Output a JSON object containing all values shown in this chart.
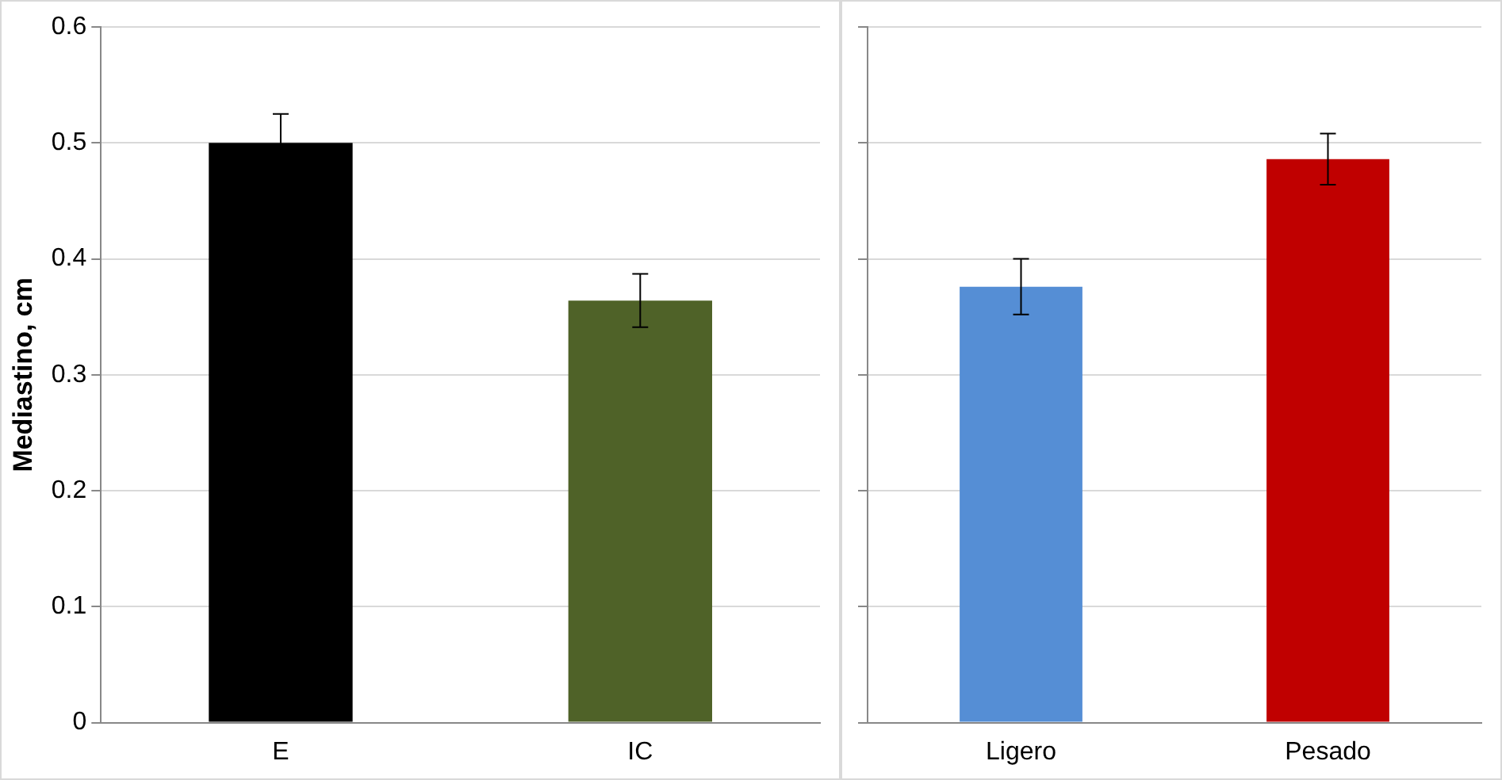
{
  "chart_data": [
    {
      "type": "bar",
      "ylabel": "Mediastino, cm",
      "categories": [
        "E",
        "IC"
      ],
      "values": [
        0.5,
        0.364
      ],
      "colors": [
        "#000000",
        "#4f6228"
      ],
      "errors": [
        0.025,
        0.023
      ],
      "ylim": [
        0,
        0.6
      ],
      "yticks": [
        0,
        0.1,
        0.2,
        0.3,
        0.4,
        0.5,
        0.6
      ],
      "grid": "y",
      "legend": false
    },
    {
      "type": "bar",
      "categories": [
        "Ligero",
        "Pesado"
      ],
      "values": [
        0.376,
        0.486
      ],
      "colors": [
        "#558ed5",
        "#c00000"
      ],
      "errors": [
        0.024,
        0.022
      ],
      "ylim": [
        0,
        0.6
      ],
      "yticks": [
        0,
        0.1,
        0.2,
        0.3,
        0.4,
        0.5,
        0.6
      ],
      "grid": "y",
      "legend": false,
      "tick_labels": "x"
    }
  ]
}
